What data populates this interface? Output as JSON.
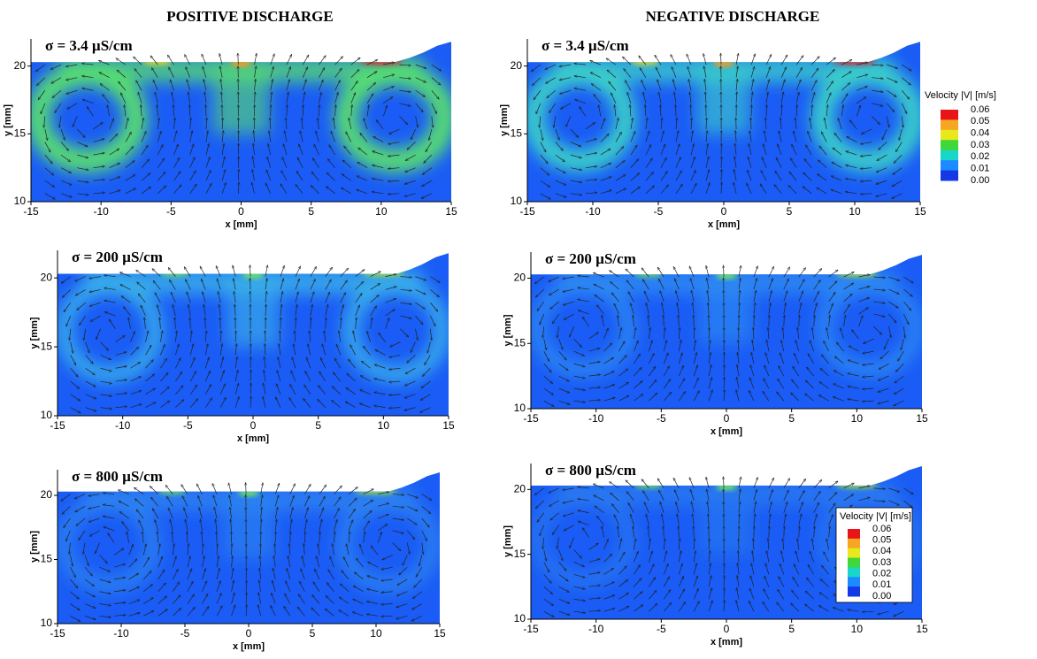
{
  "chart_data": [
    {
      "type": "vector_field",
      "title": "POSITIVE DISCHARGE",
      "annotation": "σ = 3.4 µS/cm",
      "xlabel": "x [mm]",
      "ylabel": "y [mm]",
      "xlim": [
        -15,
        15
      ],
      "ylim": [
        10,
        22
      ],
      "xticks": [
        -15,
        -10,
        -5,
        0,
        5,
        10,
        15
      ],
      "yticks": [
        10,
        15,
        20
      ]
    },
    {
      "type": "vector_field",
      "title": "NEGATIVE DISCHARGE",
      "annotation": "σ = 3.4 µS/cm",
      "xlabel": "x [mm]",
      "ylabel": "y [mm]",
      "xlim": [
        -15,
        15
      ],
      "ylim": [
        10,
        22
      ],
      "xticks": [
        -15,
        -10,
        -5,
        0,
        5,
        10,
        15
      ],
      "yticks": [
        10,
        15,
        20
      ],
      "colorbar": {
        "title": "Velocity |V| [m/s]",
        "ticks": [
          0.06,
          0.05,
          0.04,
          0.03,
          0.02,
          0.01,
          {
            "value": 0,
            "label": "0.00"
          }
        ],
        "colors": [
          "#e8141a",
          "#f5a623",
          "#e8e81c",
          "#3fd73a",
          "#19d6c8",
          "#1a8cff",
          "#1438e6"
        ]
      }
    },
    {
      "type": "vector_field",
      "annotation": "σ = 200 µS/cm",
      "xlabel": "x [mm]",
      "ylabel": "y [mm]",
      "xlim": [
        -15,
        15
      ],
      "ylim": [
        10,
        22
      ],
      "xticks": [
        -15,
        -10,
        -5,
        0,
        5,
        10,
        15
      ],
      "yticks": [
        10,
        15,
        20
      ]
    },
    {
      "type": "vector_field",
      "annotation": "σ = 200 µS/cm",
      "xlabel": "x [mm]",
      "ylabel": "y [mm]",
      "xlim": [
        -15,
        15
      ],
      "ylim": [
        10,
        22
      ],
      "xticks": [
        -15,
        -10,
        -5,
        0,
        5,
        10,
        15
      ],
      "yticks": [
        10,
        15,
        20
      ]
    },
    {
      "type": "vector_field",
      "annotation": "σ = 800 µS/cm",
      "xlabel": "x [mm]",
      "ylabel": "y [mm]",
      "xlim": [
        -15,
        15
      ],
      "ylim": [
        10,
        22
      ],
      "xticks": [
        -15,
        -10,
        -5,
        0,
        5,
        10,
        15
      ],
      "yticks": [
        10,
        15,
        20
      ]
    },
    {
      "type": "vector_field",
      "annotation": "σ = 800 µS/cm",
      "xlabel": "x [mm]",
      "ylabel": "y [mm]",
      "xlim": [
        -15,
        15
      ],
      "ylim": [
        10,
        22
      ],
      "xticks": [
        -15,
        -10,
        -5,
        0,
        5,
        10,
        15
      ],
      "yticks": [
        10,
        15,
        20
      ],
      "colorbar": {
        "title": "Velocity |V| [m/s]",
        "ticks": [
          0.06,
          0.05,
          0.04,
          0.03,
          0.02,
          0.01,
          {
            "value": 0,
            "label": "0.00"
          }
        ],
        "colors": [
          "#e8141a",
          "#f5a623",
          "#e8e81c",
          "#3fd73a",
          "#19d6c8",
          "#1a8cff",
          "#1438e6"
        ]
      }
    }
  ]
}
